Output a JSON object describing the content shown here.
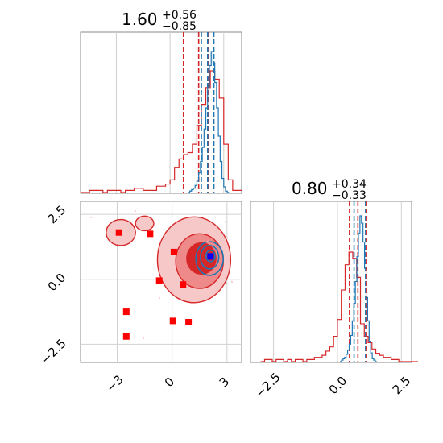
{
  "chart_data": [
    {
      "type": "histogram",
      "panel": "top-left",
      "title": {
        "value": "1.60",
        "upper": "+0.56",
        "lower": "−0.85"
      },
      "x_range": [
        -5.0,
        4.0
      ],
      "colors": {
        "series_a": "#d62728",
        "series_b": "#1f77b4"
      },
      "series": [
        {
          "color_key": "series_a",
          "bins": {
            "start": -5.0,
            "width": 0.25
          },
          "counts": [
            0,
            0,
            1,
            1,
            1,
            0,
            1,
            1,
            1,
            0,
            1,
            1,
            2,
            2,
            1,
            1,
            1,
            3,
            3,
            4,
            6,
            12,
            16,
            18,
            19,
            23,
            32,
            42,
            50,
            58,
            54,
            45,
            23,
            6,
            1,
            1
          ],
          "quantile_lines": [
            0.75,
            1.6,
            2.16
          ]
        },
        {
          "color_key": "series_b",
          "bins": {
            "start": 1.0,
            "width": 0.1
          },
          "counts": [
            0,
            1,
            2,
            3,
            5,
            8,
            14,
            22,
            32,
            45,
            60,
            75,
            90,
            100,
            92,
            78,
            60,
            40,
            22,
            10,
            4,
            1,
            0
          ],
          "quantile_lines": [
            1.75,
            2.1,
            2.45
          ]
        }
      ]
    },
    {
      "type": "contour",
      "panel": "bottom-left",
      "x_range": [
        -5.0,
        3.8
      ],
      "y_range": [
        -3.2,
        3.0
      ],
      "x_ticks": [
        "−3",
        "0",
        "3"
      ],
      "y_ticks": [
        "2.5",
        "0.0",
        "−2.5"
      ],
      "series": [
        {
          "color_key": "series_a",
          "contours": [
            {
              "level": "outer",
              "cx": 1.2,
              "cy": 0.75,
              "rx": 2.0,
              "ry": 1.65
            },
            {
              "level": "middle",
              "cx": 1.5,
              "cy": 0.7,
              "rx": 1.3,
              "ry": 1.05
            },
            {
              "level": "inner",
              "cx": 1.6,
              "cy": 0.8,
              "rx": 0.8,
              "ry": 0.6
            }
          ],
          "side_blobs": [
            {
              "cx": -2.8,
              "cy": 1.8,
              "rx": 0.8,
              "ry": 0.5
            },
            {
              "cx": -1.5,
              "cy": 2.15,
              "rx": 0.5,
              "ry": 0.28
            }
          ],
          "markers": [
            {
              "x": -2.9,
              "y": 1.8
            },
            {
              "x": -1.2,
              "y": 1.75
            },
            {
              "x": 0.1,
              "y": 1.05
            },
            {
              "x": -0.7,
              "y": -0.05
            },
            {
              "x": 0.6,
              "y": -0.2
            },
            {
              "x": 0.05,
              "y": -1.6
            },
            {
              "x": 0.9,
              "y": -1.65
            },
            {
              "x": -2.5,
              "y": -1.25
            },
            {
              "x": -2.5,
              "y": -2.2
            }
          ]
        },
        {
          "color_key": "series_b",
          "contours": [
            {
              "level": "outer",
              "cx": 2.05,
              "cy": 0.8,
              "rx": 0.75,
              "ry": 0.65
            },
            {
              "level": "middle",
              "cx": 2.05,
              "cy": 0.85,
              "rx": 0.5,
              "ry": 0.45
            },
            {
              "level": "inner",
              "cx": 2.1,
              "cy": 0.9,
              "rx": 0.25,
              "ry": 0.22
            }
          ],
          "markers": [
            {
              "x": 2.1,
              "y": 0.88
            }
          ]
        }
      ]
    },
    {
      "type": "histogram",
      "panel": "bottom-right",
      "title": {
        "value": "0.80",
        "upper": "+0.34",
        "lower": "−0.33"
      },
      "x_range": [
        -3.4,
        2.9
      ],
      "x_ticks": [
        "−2.5",
        "0.0",
        "2.5"
      ],
      "series": [
        {
          "color_key": "series_a",
          "bins": {
            "start": -3.0,
            "width": 0.15
          },
          "counts": [
            0,
            1,
            1,
            0,
            1,
            1,
            0,
            1,
            0,
            1,
            1,
            0,
            1,
            1,
            2,
            2,
            3,
            5,
            7,
            12,
            20,
            34,
            46,
            52,
            49,
            40,
            18,
            12,
            9,
            6,
            4,
            3,
            2,
            2,
            1,
            1,
            0,
            0,
            0,
            0,
            0
          ],
          "quantile_lines": [
            0.47,
            0.8,
            1.14
          ]
        },
        {
          "color_key": "series_b",
          "bins": {
            "start": 0.1,
            "width": 0.06
          },
          "counts": [
            0,
            1,
            2,
            3,
            5,
            8,
            12,
            18,
            28,
            40,
            55,
            72,
            88,
            100,
            95,
            82,
            64,
            44,
            28,
            14,
            6,
            2,
            1,
            0
          ],
          "quantile_lines": [
            0.65,
            1.1
          ]
        }
      ]
    }
  ]
}
